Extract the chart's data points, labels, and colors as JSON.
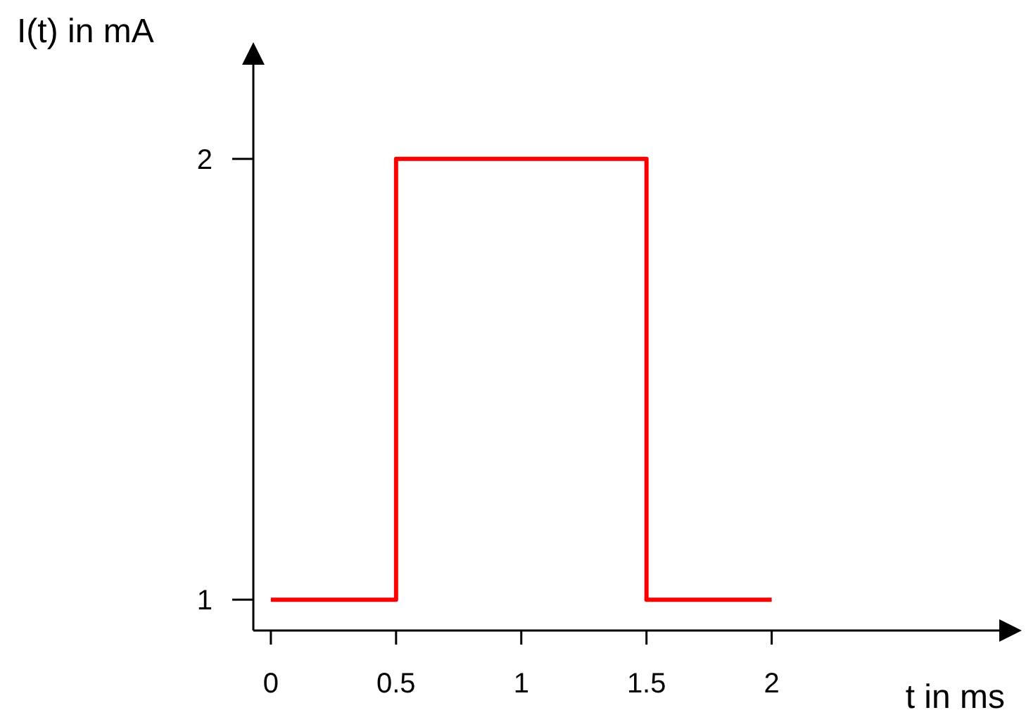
{
  "chart_data": {
    "type": "step",
    "xlabel": "t in ms",
    "ylabel": "I(t) in mA",
    "x": [
      0,
      0.5,
      1.5,
      2
    ],
    "values": [
      1,
      2,
      1,
      1
    ],
    "color": "#ff0000",
    "xlim": [
      -0.07,
      2.92
    ],
    "ylim": [
      0.93,
      2.22
    ],
    "xticks": [
      0,
      0.5,
      1,
      1.5,
      2
    ],
    "yticks": [
      1,
      2
    ]
  }
}
